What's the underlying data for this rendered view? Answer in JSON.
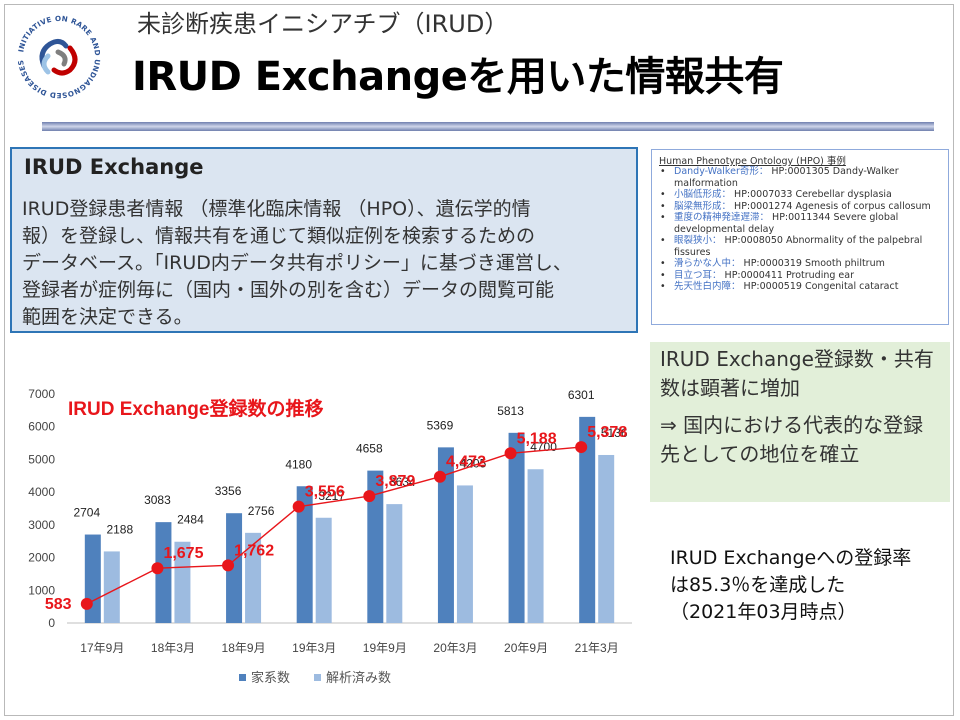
{
  "header": {
    "subtitle": "未診断疾患イニシアチブ（IRUD）",
    "title": "IRUD Exchangeを用いた情報共有",
    "logo_text": "INITIATIVE ON RARE AND UNDIAGNOSED DISEASES"
  },
  "info_box": {
    "title": "IRUD Exchange",
    "lines": [
      "IRUD登録患者情報 （標準化臨床情報 （HPO）、遺伝学的情",
      "報）を登録し、情報共有を通じて類似症例を検索するための",
      "データベース。「IRUD内データ共有ポリシー」に基づき運営し、",
      "登録者が症例毎に（国内・国外の別を含む）データの閲覧可能",
      "範囲を決定できる。"
    ]
  },
  "hpo": {
    "title": "Human Phenotype Ontology (HPO) 事例",
    "items": [
      {
        "jp": "Dandy-Walker奇形：",
        "code": "HP:0001305 Dandy-Walker malformation"
      },
      {
        "jp": "小脳低形成：",
        "code": "HP:0007033 Cerebellar dysplasia"
      },
      {
        "jp": "脳梁無形成：",
        "code": "HP:0001274 Agenesis of corpus callosum"
      },
      {
        "jp": "重度の精神発達遅滞：",
        "code": "HP:0011344 Severe global developmental delay"
      },
      {
        "jp": "眼裂狭小：",
        "code": "HP:0008050 Abnormality of the palpebral fissures"
      },
      {
        "jp": "滑らかな人中：",
        "code": "HP:0000319 Smooth philtrum"
      },
      {
        "jp": "目立つ耳：",
        "code": "HP:0000411 Protruding ear"
      },
      {
        "jp": "先天性白内障：",
        "code": "HP:0000519 Congenital cataract"
      }
    ]
  },
  "highlight": {
    "line1": "IRUD Exchange登録数・共有数は顕著に増加",
    "line2": "⇒ 国内における代表的な登録先としての地位を確立"
  },
  "rate": {
    "line1": "IRUD Exchangeへの登録率",
    "line2": "は85.3％を達成した",
    "line3": "（2021年03月時点）"
  },
  "chart_data": {
    "type": "bar",
    "title": "IRUD Exchange登録数の推移",
    "categories": [
      "17年9月",
      "18年3月",
      "18年9月",
      "19年3月",
      "19年9月",
      "20年3月",
      "20年9月",
      "21年3月"
    ],
    "ylim": [
      0,
      7000
    ],
    "yticks": [
      0,
      1000,
      2000,
      3000,
      4000,
      5000,
      6000,
      7000
    ],
    "series": [
      {
        "name": "家系数",
        "values": [
          2704,
          3083,
          3356,
          4180,
          4658,
          5369,
          5813,
          6301
        ],
        "color": "#4f81bd"
      },
      {
        "name": "解析済み数",
        "values": [
          2188,
          2484,
          2756,
          3217,
          3634,
          4205,
          4700,
          5136
        ],
        "color": "#9dbbe0"
      }
    ],
    "line": {
      "values": [
        583,
        1675,
        1762,
        3556,
        3879,
        4472,
        5188,
        5378
      ],
      "labels": [
        "583",
        "1,675",
        "1,762",
        "3,556",
        "3,879",
        "4,472",
        "5,188",
        "5,378"
      ],
      "color": "#e8161b"
    },
    "legend_position": "bottom",
    "grid": false
  },
  "colors": {
    "accent_blue": "#2e75b6",
    "info_bg": "#dbe5f1",
    "green_bg": "#e2efd9",
    "red": "#e8161b"
  }
}
